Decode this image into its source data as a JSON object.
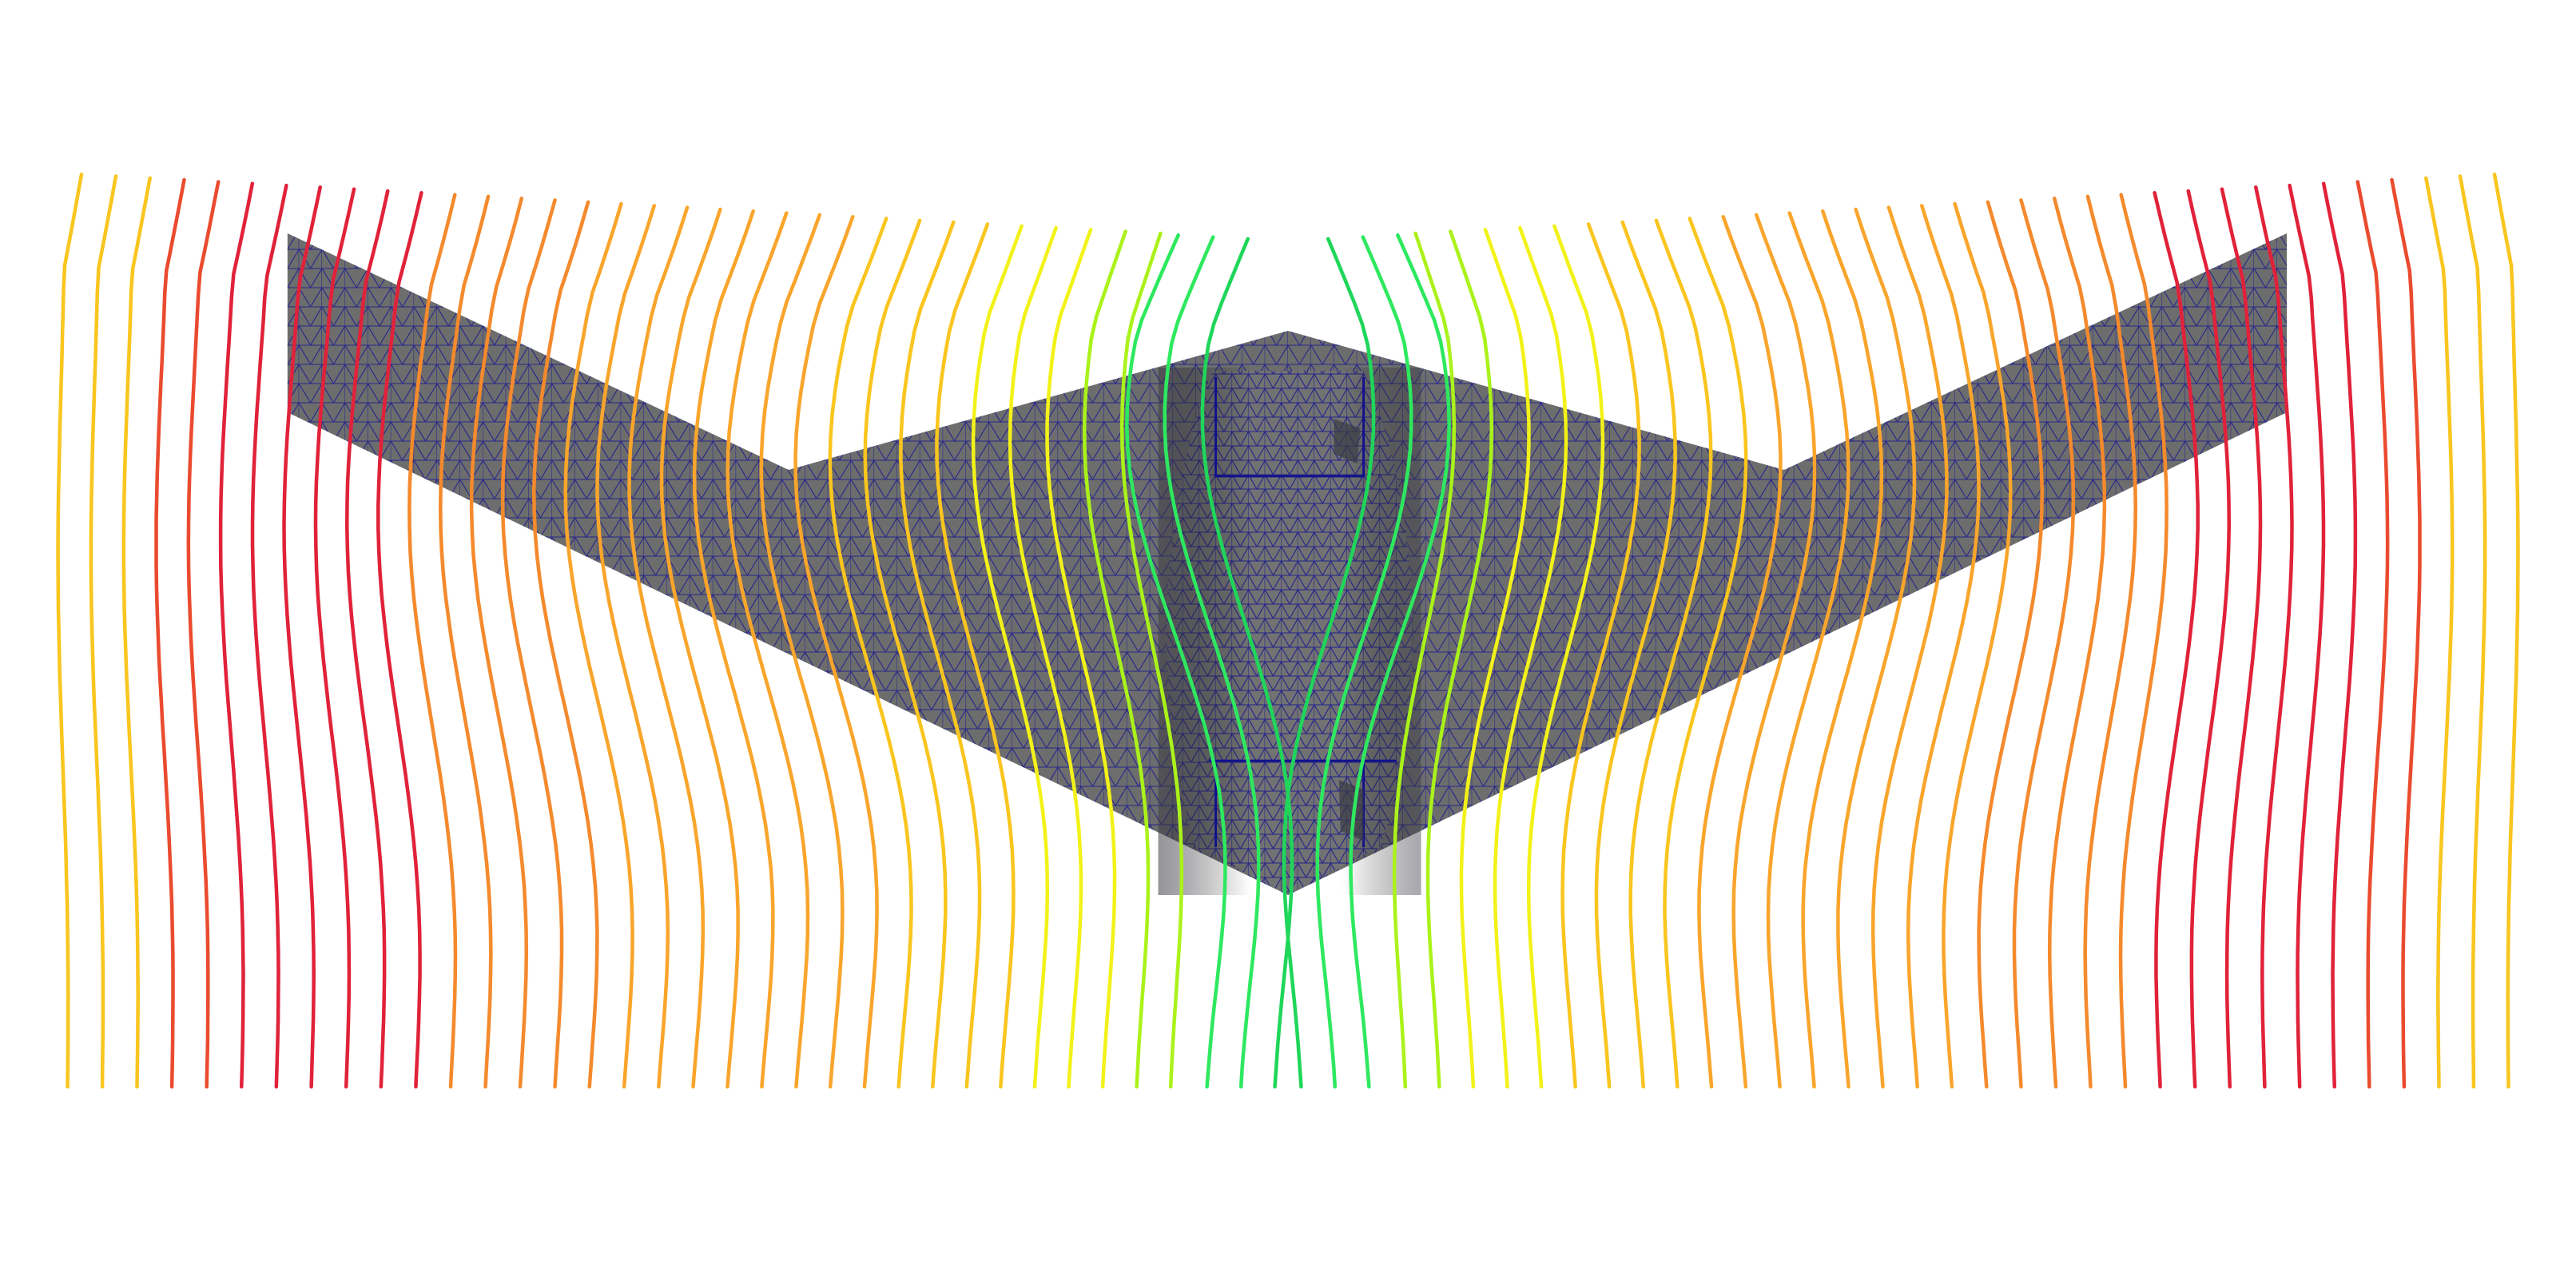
{
  "scene": {
    "background_color": "#ffffff",
    "object": "flying-wing-aircraft",
    "view": "top",
    "surface_color": "#6b6b6b",
    "mesh_edge_color": "#0a0a8c",
    "streamline_colormap": [
      "#1fd65a",
      "#2ee85f",
      "#aaf21a",
      "#f2f21a",
      "#f9c51f",
      "#f9a52c",
      "#f48a2d",
      "#ea4b2f",
      "#e0223a"
    ],
    "streamline_count": 72,
    "highlighted_elements": [
      "left-wing",
      "right-wing",
      "center-fuselage",
      "flow-streamlines"
    ]
  }
}
